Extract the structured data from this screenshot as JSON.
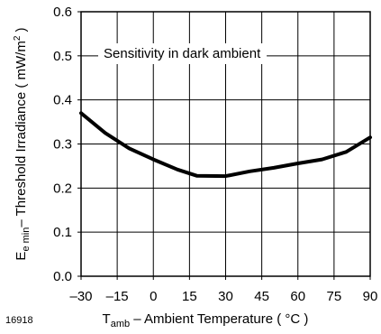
{
  "figure_id": "16918",
  "chart_data": {
    "type": "line",
    "annotation": "Sensitivity in dark ambient",
    "xlabel": {
      "main": "T",
      "sub": "amb",
      "rest": " – Ambient Temperature ( °C )"
    },
    "ylabel": {
      "main": "E",
      "sub": "e min",
      "mid": "– Threshold Irradiance ( mW/m",
      "sup": "2",
      "end": " )"
    },
    "xlim": [
      -30,
      90
    ],
    "ylim": [
      0.0,
      0.6
    ],
    "xticks": [
      -30,
      -15,
      0,
      15,
      30,
      45,
      60,
      75,
      90
    ],
    "xtick_labels": [
      "–30",
      "–15",
      "0",
      "15",
      "30",
      "45",
      "60",
      "75",
      "90"
    ],
    "yticks": [
      0.0,
      0.1,
      0.2,
      0.3,
      0.4,
      0.5,
      0.6
    ],
    "ytick_labels": [
      "0.0",
      "0.1",
      "0.2",
      "0.3",
      "0.4",
      "0.5",
      "0.6"
    ],
    "grid": true,
    "series": [
      {
        "x": [
          -30,
          -20,
          -10,
          0,
          10,
          18,
          30,
          40,
          50,
          60,
          70,
          80,
          90
        ],
        "y": [
          0.37,
          0.325,
          0.29,
          0.265,
          0.242,
          0.228,
          0.227,
          0.238,
          0.246,
          0.256,
          0.265,
          0.282,
          0.315
        ]
      }
    ]
  }
}
